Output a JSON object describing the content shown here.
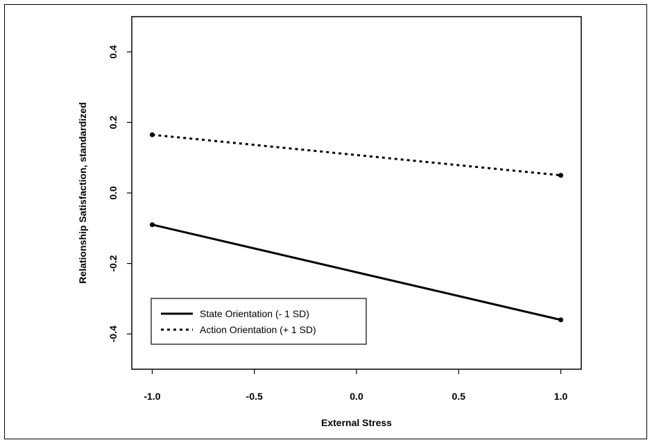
{
  "chart_data": {
    "type": "line",
    "title": "",
    "xlabel": "External Stress",
    "ylabel": "Relationship Satisfaction, standardized",
    "xlim": [
      -1.1,
      1.1
    ],
    "ylim": [
      -0.5,
      0.5
    ],
    "xticks": [
      -1.0,
      -0.5,
      0.0,
      0.5,
      1.0
    ],
    "xtick_labels": [
      "-1.0",
      "-0.5",
      "0.0",
      "0.5",
      "1.0"
    ],
    "yticks": [
      -0.4,
      -0.2,
      0.0,
      0.2,
      0.4
    ],
    "ytick_labels": [
      "-0.4",
      "-0.2",
      "0.0",
      "0.2",
      "0.4"
    ],
    "grid": false,
    "legend_position": "bottom-left",
    "series": [
      {
        "name": "State Orientation (- 1 SD)",
        "style": "solid",
        "color": "#000000",
        "x": [
          -1.0,
          1.0
        ],
        "y": [
          -0.09,
          -0.36
        ]
      },
      {
        "name": "Action Orientation (+ 1 SD)",
        "style": "dotted",
        "color": "#000000",
        "x": [
          -1.0,
          1.0
        ],
        "y": [
          0.165,
          0.05
        ]
      }
    ]
  }
}
